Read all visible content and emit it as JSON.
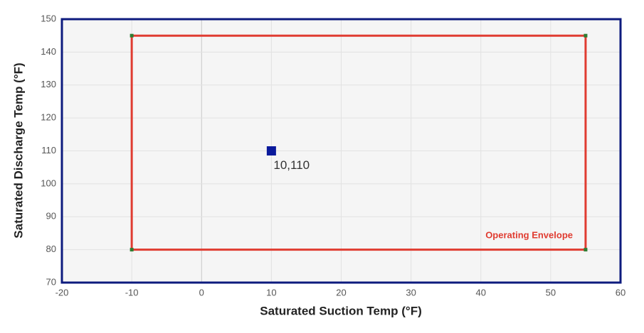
{
  "chart_data": {
    "type": "scatter",
    "xlabel": "Saturated Suction Temp (°F)",
    "ylabel": "Saturated Discharge Temp (°F)",
    "xlim": [
      -20,
      60
    ],
    "ylim": [
      70,
      150
    ],
    "xticks": [
      -20,
      -10,
      0,
      10,
      20,
      30,
      40,
      50,
      60
    ],
    "yticks": [
      70,
      80,
      90,
      100,
      110,
      120,
      130,
      140,
      150
    ],
    "grid": true,
    "series": [
      {
        "name": "Operating Envelope",
        "color": "#e03c31",
        "marker_color": "#2e7d32",
        "closed": true,
        "x": [
          -10,
          -10,
          55,
          55
        ],
        "y": [
          80,
          145,
          145,
          80
        ]
      },
      {
        "color": "#0a1a9c",
        "x": [
          10
        ],
        "y": [
          110
        ],
        "value_labels": [
          "10,110"
        ]
      }
    ]
  }
}
